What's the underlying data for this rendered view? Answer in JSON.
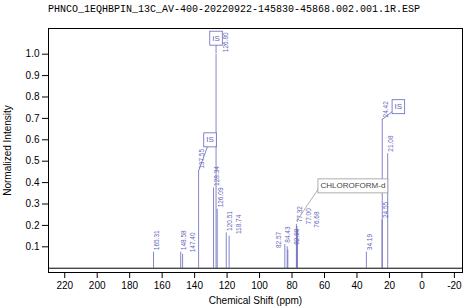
{
  "chart_data": {
    "type": "stem",
    "title": "PHNCO_1EQHBPIN_13C_AV-400-20220922-145830-45868.002.001.1R.ESP",
    "xlabel": "Chemical Shift (ppm)",
    "ylabel": "Normalized Intensity",
    "x": [
      165.31,
      148.58,
      147.4,
      137.55,
      128.34,
      126.8,
      126.09,
      120.51,
      118.74,
      84.43,
      82.98,
      82.57,
      77.32,
      77.0,
      76.68,
      34.19,
      24.55,
      24.42,
      21.08
    ],
    "values": [
      0.075,
      0.075,
      0.065,
      0.455,
      0.375,
      1.0,
      0.275,
      0.165,
      0.15,
      0.11,
      0.1,
      0.085,
      0.205,
      0.195,
      0.18,
      0.075,
      0.225,
      0.695,
      0.535
    ],
    "labels": [
      "165.31",
      "148.58",
      "147.40",
      "137.55",
      "128.34",
      "126.80",
      "126.09",
      "120.51",
      "118.74",
      "84.43",
      "82.98",
      "82.57",
      "77.32",
      "77.00",
      "76.68",
      "34.19",
      "24.55",
      "24.42",
      "21.08"
    ],
    "color": "#6666bb",
    "baseline": 0,
    "xlim": [
      230,
      -25
    ],
    "ylim": [
      -0.02,
      1.12
    ],
    "xticks": [
      220,
      200,
      180,
      160,
      140,
      120,
      100,
      80,
      60,
      40,
      20,
      0,
      -20
    ],
    "yticks": [
      0.1,
      0.2,
      0.3,
      0.4,
      0.5,
      0.6,
      0.7,
      0.8,
      0.9,
      {
        "value": 1.0,
        "label": "1.0"
      }
    ],
    "grid": false,
    "annotations": [
      {
        "text": "IS",
        "x": 137.55,
        "y": 0.455,
        "text_x": 130.5,
        "text_y": 0.6,
        "align": "center",
        "color": "#6666bb",
        "border_color": "#6666bb"
      },
      {
        "text": "IS",
        "x": 126.8,
        "y": 1.005,
        "text_x": 126.8,
        "text_y": 1.075,
        "align": "center",
        "color": "#6666bb",
        "border_color": "#6666bb"
      },
      {
        "text": "IS",
        "x": 24.42,
        "y": 0.695,
        "text_x": 14.5,
        "text_y": 0.755,
        "align": "center",
        "color": "#6666bb",
        "border_color": "#6666bb"
      },
      {
        "text": "CHLOROFORM-d",
        "x": 77.16,
        "y": 0.22,
        "text_x": 62.5,
        "text_y": 0.385,
        "align": "left",
        "color": "#444444",
        "border_color": "#999999"
      }
    ]
  }
}
